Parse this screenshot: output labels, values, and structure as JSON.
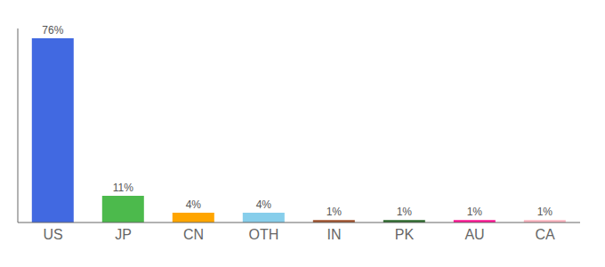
{
  "chart_data": {
    "type": "bar",
    "categories": [
      "US",
      "JP",
      "CN",
      "OTH",
      "IN",
      "PK",
      "AU",
      "CA"
    ],
    "values": [
      76,
      11,
      4,
      4,
      1,
      1,
      1,
      1
    ],
    "value_labels": [
      "76%",
      "11%",
      "4%",
      "4%",
      "1%",
      "1%",
      "1%",
      "1%"
    ],
    "colors": [
      "#4169e1",
      "#4cba4c",
      "#ffa500",
      "#87ceeb",
      "#a0522d",
      "#2d6a2d",
      "#ff1493",
      "#ffb6c1"
    ],
    "ylim": [
      0,
      80
    ],
    "data_labels": true,
    "tick_labels": "x",
    "grid": false
  }
}
